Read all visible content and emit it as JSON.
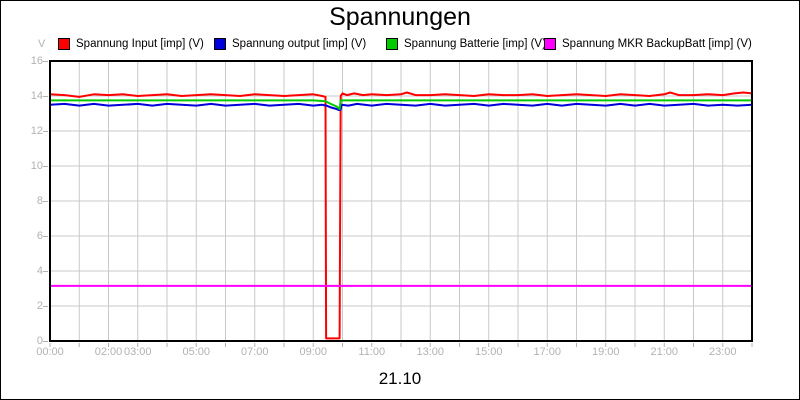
{
  "chart_data": {
    "type": "line",
    "title": "Spannungen",
    "date_label": "21.10",
    "grid_color": "#c9c9c9",
    "axis_label_color": "#b2b2b2",
    "plot_border_color": "#000000",
    "xlim_hours": [
      0,
      24
    ],
    "ylim": [
      0,
      16
    ],
    "y_axis": {
      "unit": "V",
      "ticks": [
        0,
        2,
        4,
        6,
        8,
        10,
        12,
        14,
        16
      ]
    },
    "x_axis": {
      "minor_tick_every_hours": 1,
      "labels": [
        {
          "h": 0,
          "text": "00:00"
        },
        {
          "h": 2,
          "text": "02:00"
        },
        {
          "h": 3,
          "text": "03:00"
        },
        {
          "h": 5,
          "text": "05:00"
        },
        {
          "h": 7,
          "text": "07:00"
        },
        {
          "h": 9,
          "text": "09:00"
        },
        {
          "h": 11,
          "text": "11:00"
        },
        {
          "h": 13,
          "text": "13:00"
        },
        {
          "h": 15,
          "text": "15:00"
        },
        {
          "h": 17,
          "text": "17:00"
        },
        {
          "h": 19,
          "text": "19:00"
        },
        {
          "h": 21,
          "text": "21:00"
        },
        {
          "h": 23,
          "text": "23:00"
        }
      ]
    },
    "series": [
      {
        "id": "input",
        "label": "Spannung Input [imp] (V)",
        "color": "#ff0000",
        "x": [
          0,
          0.5,
          1,
          1.5,
          2,
          2.5,
          3,
          3.5,
          4,
          4.5,
          5,
          5.5,
          6,
          6.5,
          7,
          7.5,
          8,
          8.5,
          9,
          9.3,
          9.42,
          9.44,
          9.9,
          9.94,
          10,
          10.15,
          10.4,
          10.7,
          11,
          11.5,
          12,
          12.2,
          12.5,
          13,
          13.5,
          14,
          14.5,
          15,
          15.5,
          16,
          16.5,
          17,
          17.5,
          18,
          18.5,
          19,
          19.5,
          20,
          20.5,
          21,
          21.2,
          21.5,
          22,
          22.5,
          23,
          23.4,
          23.7,
          24
        ],
        "y": [
          14.1,
          14.05,
          13.95,
          14.1,
          14.05,
          14.1,
          14,
          14.05,
          14.1,
          14,
          14.05,
          14.1,
          14.05,
          14,
          14.1,
          14.05,
          14,
          14.05,
          14.1,
          14,
          13.95,
          0.15,
          0.15,
          14,
          14.15,
          14.05,
          14.15,
          14.05,
          14.1,
          14.05,
          14.1,
          14.2,
          14.05,
          14.05,
          14.1,
          14.05,
          14,
          14.1,
          14.05,
          14.05,
          14.1,
          14,
          14.05,
          14.1,
          14.05,
          14,
          14.1,
          14.05,
          14,
          14.1,
          14.2,
          14.05,
          14.05,
          14.1,
          14.05,
          14.15,
          14.2,
          14.15
        ]
      },
      {
        "id": "output",
        "label": "Spannung output [imp] (V)",
        "color": "#0000dd",
        "x": [
          0,
          0.5,
          1,
          1.5,
          2,
          2.5,
          3,
          3.5,
          4,
          4.5,
          5,
          5.5,
          6,
          6.5,
          7,
          7.5,
          8,
          8.5,
          9,
          9.3,
          9.45,
          9.6,
          9.75,
          9.88,
          9.93,
          9.97,
          10.2,
          10.5,
          11,
          11.5,
          12,
          12.5,
          13,
          13.5,
          14,
          14.5,
          15,
          15.5,
          16,
          16.5,
          17,
          17.5,
          18,
          18.5,
          19,
          19.5,
          20,
          20.5,
          21,
          21.5,
          22,
          22.5,
          23,
          23.5,
          24
        ],
        "y": [
          13.5,
          13.55,
          13.45,
          13.55,
          13.45,
          13.5,
          13.55,
          13.45,
          13.55,
          13.5,
          13.45,
          13.55,
          13.45,
          13.5,
          13.55,
          13.45,
          13.5,
          13.55,
          13.45,
          13.5,
          13.45,
          13.35,
          13.28,
          13.2,
          13.2,
          13.5,
          13.45,
          13.55,
          13.45,
          13.55,
          13.5,
          13.45,
          13.55,
          13.45,
          13.5,
          13.55,
          13.45,
          13.55,
          13.5,
          13.45,
          13.55,
          13.45,
          13.55,
          13.5,
          13.45,
          13.55,
          13.45,
          13.55,
          13.45,
          13.5,
          13.55,
          13.45,
          13.5,
          13.45,
          13.5
        ]
      },
      {
        "id": "batterie",
        "label": "Spannung Batterie [imp] (V)",
        "color": "#00cc00",
        "x": [
          0,
          1,
          2,
          3,
          4,
          5,
          6,
          7,
          8,
          9,
          9.42,
          9.6,
          9.8,
          9.9,
          9.94,
          10,
          11,
          12,
          13,
          14,
          15,
          16,
          17,
          18,
          19,
          20,
          21,
          22,
          23,
          24
        ],
        "y": [
          13.75,
          13.75,
          13.75,
          13.75,
          13.75,
          13.75,
          13.75,
          13.75,
          13.75,
          13.75,
          13.7,
          13.55,
          13.4,
          13.25,
          13.75,
          13.75,
          13.75,
          13.75,
          13.75,
          13.75,
          13.75,
          13.75,
          13.75,
          13.75,
          13.75,
          13.75,
          13.75,
          13.75,
          13.75,
          13.75
        ]
      },
      {
        "id": "mkr-backupbatt",
        "label": "Spannung MKR BackupBatt [imp] (V)",
        "color": "#ff00ff",
        "x": [
          0,
          24
        ],
        "y": [
          3.15,
          3.15
        ]
      }
    ]
  }
}
